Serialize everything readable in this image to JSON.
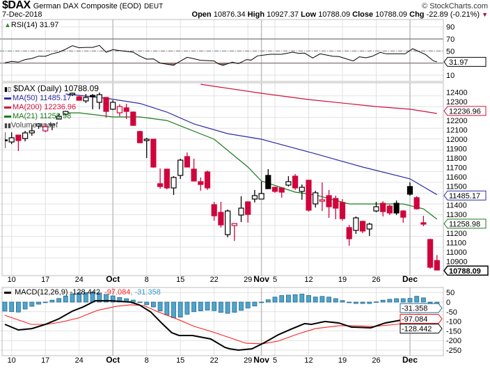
{
  "header": {
    "symbol": "$DAX",
    "name": "German DAX Composite (EOD)",
    "exchange": "DEUT",
    "copyright": "© StockCharts.com",
    "date": "7-Dec-2018",
    "open_label": "Open",
    "open": "10876.34",
    "high_label": "High",
    "high": "10927.37",
    "low_label": "Low",
    "low": "10788.09",
    "close_label": "Close",
    "close": "10788.09",
    "chg_label": "Chg",
    "chg": "-22.89 (-0.21%)"
  },
  "legends": {
    "rsi": "RSI(14) 31.97",
    "price": "$DAX (Daily) 10788.09",
    "ma50": "MA(50) 11485.17",
    "ma200": "MA(200) 12236.96",
    "ma21": "MA(21) 11258.98",
    "volume": "Volume undef",
    "macd_name": "MACD(12,26,9)",
    "macd_val": "-128.442",
    "signal_val": ", -97.084",
    "hist_val": ", -31.358"
  },
  "colors": {
    "up": "#000000",
    "down": "#d0043c",
    "ma50": "#2b2ba6",
    "ma200": "#d0103c",
    "ma21": "#1b7a1b",
    "hist_fill": "#4ea4cc",
    "hist_stroke": "#26698f",
    "macd": "#000000",
    "signal": "#ff2020"
  },
  "chart_data": {
    "type": "candlestick",
    "title": "$DAX German DAX Composite (EOD)",
    "x_labels": [
      {
        "text": "10",
        "index": 1,
        "month": false
      },
      {
        "text": "17",
        "index": 6,
        "month": false
      },
      {
        "text": "24",
        "index": 11,
        "month": false
      },
      {
        "text": "Oct",
        "index": 16,
        "month": true
      },
      {
        "text": "8",
        "index": 21,
        "month": false
      },
      {
        "text": "15",
        "index": 26,
        "month": false
      },
      {
        "text": "22",
        "index": 31,
        "month": false
      },
      {
        "text": "29",
        "index": 36,
        "month": false
      },
      {
        "text": "Nov",
        "index": 38,
        "month": true
      },
      {
        "text": "5",
        "index": 40,
        "month": false
      },
      {
        "text": "12",
        "index": 45,
        "month": false
      },
      {
        "text": "19",
        "index": 50,
        "month": false
      },
      {
        "text": "26",
        "index": 55,
        "month": false
      },
      {
        "text": "Dec",
        "index": 60,
        "month": true
      }
    ],
    "price_axis": {
      "ylim": [
        10760,
        12520
      ],
      "ticks": [
        12400,
        12300,
        12200,
        12100,
        12000,
        11900,
        11800,
        11700,
        11600,
        11500,
        11400,
        11300,
        11200,
        11100,
        11000,
        10900
      ]
    },
    "candles_ohlc": [
      [
        11990,
        12063,
        11915,
        11992
      ],
      [
        11973,
        12063,
        11953,
        12012
      ],
      [
        12037,
        12040,
        11889,
        11986
      ],
      [
        12005,
        12076,
        11979,
        12057
      ],
      [
        12057,
        12127,
        12031,
        12076
      ],
      [
        12121,
        12147,
        12095,
        12140
      ],
      [
        12076,
        12140,
        12063,
        12115
      ],
      [
        12127,
        12140,
        12082,
        12140
      ],
      [
        12185,
        12237,
        12185,
        12211
      ],
      [
        12230,
        12260,
        12220,
        12256
      ],
      [
        12411,
        12430,
        12398,
        12424
      ],
      [
        12391,
        12400,
        12359,
        12359
      ],
      [
        12353,
        12417,
        12334,
        12385
      ],
      [
        12404,
        12417,
        12276,
        12391
      ],
      [
        12340,
        12430,
        12276,
        12411
      ],
      [
        12385,
        12390,
        12198,
        12256
      ],
      [
        12276,
        12359,
        12269,
        12340
      ],
      [
        12243,
        12321,
        12211,
        12301
      ],
      [
        12289,
        12327,
        12185,
        12256
      ],
      [
        12250,
        12256,
        12121,
        12127
      ],
      [
        12070,
        12076,
        11966,
        11966
      ],
      [
        11986,
        12012,
        11825,
        11999
      ],
      [
        11999,
        11999,
        11735,
        11741
      ],
      [
        11587,
        11728,
        11541,
        11561
      ],
      [
        11722,
        11725,
        11535,
        11548
      ],
      [
        11548,
        11657,
        11483,
        11645
      ],
      [
        11664,
        11818,
        11631,
        11805
      ],
      [
        11838,
        11876,
        11741,
        11741
      ],
      [
        11722,
        11818,
        11612,
        11612
      ],
      [
        11606,
        11645,
        11522,
        11580
      ],
      [
        11696,
        11709,
        11529,
        11548
      ],
      [
        11393,
        11419,
        11245,
        11290
      ],
      [
        11322,
        11419,
        11181,
        11206
      ],
      [
        11116,
        11348,
        11091,
        11335
      ],
      [
        11200,
        11219,
        11058,
        11219
      ],
      [
        11297,
        11471,
        11232,
        11361
      ],
      [
        11419,
        11425,
        11226,
        11303
      ],
      [
        11445,
        11529,
        11413,
        11477
      ],
      [
        11445,
        11606,
        11445,
        11496
      ],
      [
        11664,
        11722,
        11541,
        11541
      ],
      [
        11554,
        11560,
        11503,
        11516
      ],
      [
        11548,
        11554,
        11458,
        11509
      ],
      [
        11574,
        11657,
        11561,
        11606
      ],
      [
        11657,
        11677,
        11529,
        11548
      ],
      [
        11516,
        11580,
        11438,
        11554
      ],
      [
        11619,
        11625,
        11329,
        11342
      ],
      [
        11400,
        11522,
        11367,
        11503
      ],
      [
        11425,
        11599,
        11335,
        11438
      ],
      [
        11477,
        11529,
        11271,
        11374
      ],
      [
        11451,
        11477,
        11258,
        11361
      ],
      [
        11413,
        11445,
        11245,
        11264
      ],
      [
        11181,
        11206,
        11013,
        11078
      ],
      [
        11155,
        11284,
        11123,
        11271
      ],
      [
        11239,
        11245,
        11129,
        11149
      ],
      [
        11168,
        11226,
        11104,
        11213
      ],
      [
        11335,
        11419,
        11322,
        11374
      ],
      [
        11406,
        11425,
        11284,
        11329
      ],
      [
        11380,
        11393,
        11297,
        11316
      ],
      [
        11406,
        11432,
        11297,
        11316
      ],
      [
        11335,
        11342,
        11226,
        11277
      ],
      [
        11561,
        11599,
        11477,
        11490
      ],
      [
        11458,
        11471,
        11348,
        11355
      ],
      [
        11226,
        11290,
        11194,
        11213
      ],
      [
        11071,
        11078,
        10801,
        10814
      ],
      [
        10876.34,
        10927.37,
        10788.09,
        10788.09
      ]
    ],
    "ma50": [
      [
        9,
        12417
      ],
      [
        15,
        12378
      ],
      [
        20,
        12330
      ],
      [
        24,
        12250
      ],
      [
        28,
        12140
      ],
      [
        33,
        12050
      ],
      [
        38,
        11999
      ],
      [
        46,
        11864
      ],
      [
        53,
        11741
      ],
      [
        60,
        11632
      ],
      [
        64,
        11485.17
      ]
    ],
    "ma200": [
      [
        29,
        12507
      ],
      [
        38,
        12424
      ],
      [
        45,
        12366
      ],
      [
        55,
        12301
      ],
      [
        60,
        12276
      ],
      [
        64,
        12236.96
      ]
    ],
    "ma21": [
      [
        9,
        12243
      ],
      [
        11,
        12243
      ],
      [
        16,
        12205
      ],
      [
        20,
        12205
      ],
      [
        24,
        12172
      ],
      [
        31,
        11999
      ],
      [
        36,
        11741
      ],
      [
        38,
        11612
      ],
      [
        43,
        11509
      ],
      [
        46,
        11483
      ],
      [
        51,
        11400
      ],
      [
        55,
        11400
      ],
      [
        59,
        11400
      ],
      [
        62,
        11355
      ],
      [
        64,
        11258.98
      ]
    ],
    "last_tags": {
      "ma200": "12236.96",
      "ma50": "11485.17",
      "ma21": "11258.98",
      "close": "10788.09"
    },
    "rsi": {
      "period": 14,
      "ticks": [
        90,
        70,
        50,
        10
      ],
      "levels": [
        70,
        50,
        30
      ],
      "ylim": [
        0,
        100
      ],
      "tag": "31.97",
      "points": [
        [
          0,
          30.4
        ],
        [
          1,
          32.7
        ],
        [
          2,
          31.5
        ],
        [
          3,
          35.8
        ],
        [
          4,
          37.7
        ],
        [
          5,
          41.5
        ],
        [
          6,
          41.2
        ],
        [
          7,
          45.4
        ],
        [
          8,
          48
        ],
        [
          9,
          53
        ],
        [
          10,
          58.8
        ],
        [
          11,
          55.4
        ],
        [
          12,
          56
        ],
        [
          13,
          56
        ],
        [
          14,
          59.2
        ],
        [
          15,
          48
        ],
        [
          16,
          52.3
        ],
        [
          17,
          50.8
        ],
        [
          19,
          48
        ],
        [
          20,
          41.5
        ],
        [
          21,
          36.5
        ],
        [
          22,
          36.9
        ],
        [
          23,
          30
        ],
        [
          25,
          26.2
        ],
        [
          25.3,
          28.8
        ],
        [
          27,
          39.6
        ],
        [
          29,
          34.6
        ],
        [
          31,
          33.5
        ],
        [
          31.6,
          28.8
        ],
        [
          32.3,
          26.2
        ],
        [
          33.7,
          31.5
        ],
        [
          34.6,
          29.2
        ],
        [
          35.8,
          35.8
        ],
        [
          36.5,
          35
        ],
        [
          37.4,
          41.9
        ],
        [
          39.3,
          44.6
        ],
        [
          41,
          44.6
        ],
        [
          42.6,
          48
        ],
        [
          43.5,
          46.2
        ],
        [
          44.4,
          46.5
        ],
        [
          45.6,
          38.5
        ],
        [
          46.7,
          45.4
        ],
        [
          48.6,
          41.2
        ],
        [
          49.5,
          40.8
        ],
        [
          51.6,
          33.5
        ],
        [
          52.5,
          40.4
        ],
        [
          53.5,
          38.8
        ],
        [
          54.4,
          41.2
        ],
        [
          55.6,
          47.7
        ],
        [
          56.5,
          45.4
        ],
        [
          59.3,
          45.4
        ],
        [
          60.4,
          53.8
        ],
        [
          62.3,
          44.2
        ],
        [
          63.5,
          33.5
        ],
        [
          64,
          31.97
        ]
      ]
    },
    "macd": {
      "params": "12,26,9",
      "ticks": [
        50,
        0,
        -50,
        -100,
        -150,
        -200,
        -250
      ],
      "ylim": [
        -280,
        80
      ],
      "tags": {
        "hist": "-31.358",
        "signal": "-97.084",
        "macd": "-128.442"
      },
      "macd_line": [
        [
          0,
          -116
        ],
        [
          2,
          -145
        ],
        [
          4,
          -138
        ],
        [
          6,
          -116
        ],
        [
          8,
          -87
        ],
        [
          10,
          -47
        ],
        [
          11.6,
          -25
        ],
        [
          13.4,
          7
        ],
        [
          15.8,
          7
        ],
        [
          18.6,
          0
        ],
        [
          19.9,
          -14
        ],
        [
          21.6,
          -51
        ],
        [
          23.3,
          -112
        ],
        [
          24.7,
          -159
        ],
        [
          25.8,
          -174
        ],
        [
          27.8,
          -174
        ],
        [
          30.5,
          -192
        ],
        [
          32.6,
          -236
        ],
        [
          33.3,
          -243
        ],
        [
          34.6,
          -250
        ],
        [
          36.6,
          -243
        ],
        [
          38.5,
          -210
        ],
        [
          40.5,
          -170
        ],
        [
          42.6,
          -138
        ],
        [
          44.4,
          -112
        ],
        [
          45.4,
          -116
        ],
        [
          47.4,
          -101
        ],
        [
          49.5,
          -109
        ],
        [
          51.3,
          -130
        ],
        [
          54.2,
          -134
        ],
        [
          56.3,
          -109
        ],
        [
          59.1,
          -91
        ],
        [
          59.8,
          -91
        ],
        [
          60.4,
          -69
        ],
        [
          61.3,
          -65
        ],
        [
          62.2,
          -69
        ],
        [
          63.2,
          -101
        ],
        [
          64,
          -128.442
        ]
      ],
      "signal_line": [
        [
          0,
          -69
        ],
        [
          3.9,
          -116
        ],
        [
          6.2,
          -116
        ],
        [
          8.2,
          -105
        ],
        [
          10.9,
          -83
        ],
        [
          13.7,
          -43
        ],
        [
          16.5,
          -22
        ],
        [
          18.6,
          -14
        ],
        [
          20.6,
          -18
        ],
        [
          22.7,
          -51
        ],
        [
          25.4,
          -87
        ],
        [
          28.1,
          -127
        ],
        [
          30.5,
          -152
        ],
        [
          33.3,
          -185
        ],
        [
          35.7,
          -214
        ],
        [
          38.2,
          -217
        ],
        [
          40.5,
          -203
        ],
        [
          43.3,
          -167
        ],
        [
          46,
          -138
        ],
        [
          49.5,
          -123
        ],
        [
          51.5,
          -123
        ],
        [
          54.6,
          -127
        ],
        [
          58,
          -116
        ],
        [
          60.8,
          -98
        ],
        [
          62.5,
          -87
        ],
        [
          64,
          -97.084
        ]
      ]
    }
  }
}
